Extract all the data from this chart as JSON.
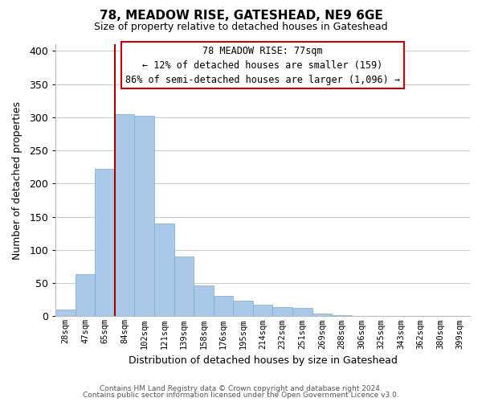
{
  "title": "78, MEADOW RISE, GATESHEAD, NE9 6GE",
  "subtitle": "Size of property relative to detached houses in Gateshead",
  "xlabel": "Distribution of detached houses by size in Gateshead",
  "ylabel": "Number of detached properties",
  "categories": [
    "28sqm",
    "47sqm",
    "65sqm",
    "84sqm",
    "102sqm",
    "121sqm",
    "139sqm",
    "158sqm",
    "176sqm",
    "195sqm",
    "214sqm",
    "232sqm",
    "251sqm",
    "269sqm",
    "288sqm",
    "306sqm",
    "325sqm",
    "343sqm",
    "362sqm",
    "380sqm",
    "399sqm"
  ],
  "values": [
    10,
    63,
    222,
    305,
    302,
    140,
    90,
    47,
    31,
    23,
    17,
    14,
    12,
    4,
    2,
    1,
    1,
    1,
    1,
    1,
    1
  ],
  "bar_color": "#aac9e8",
  "bar_edge_color": "#7aaace",
  "marker_color": "#aa0000",
  "ylim": [
    0,
    410
  ],
  "yticks": [
    0,
    50,
    100,
    150,
    200,
    250,
    300,
    350,
    400
  ],
  "annotation_title": "78 MEADOW RISE: 77sqm",
  "annotation_line1": "← 12% of detached houses are smaller (159)",
  "annotation_line2": "86% of semi-detached houses are larger (1,096) →",
  "footer1": "Contains HM Land Registry data © Crown copyright and database right 2024.",
  "footer2": "Contains public sector information licensed under the Open Government Licence v3.0.",
  "background_color": "#ffffff",
  "grid_color": "#cccccc"
}
